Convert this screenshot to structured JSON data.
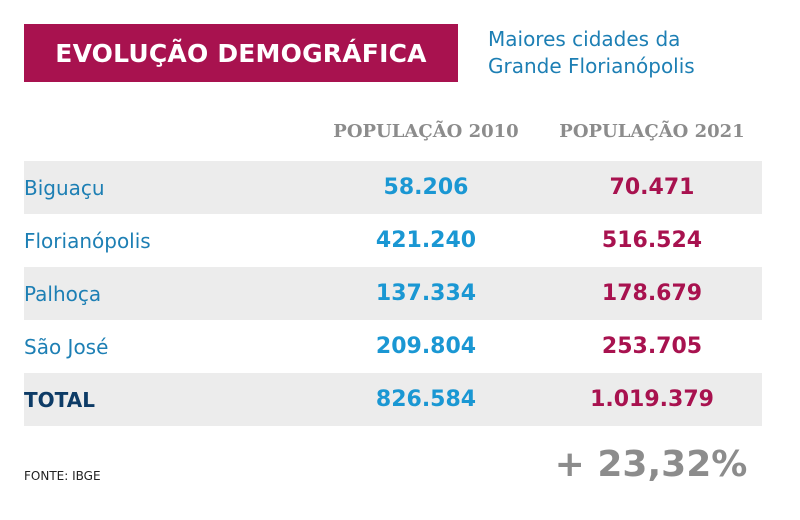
{
  "header": {
    "title": "EVOLUÇÃO DEMOGRÁFICA",
    "subtitle_line1": "Maiores cidades da",
    "subtitle_line2": "Grande Florianópolis"
  },
  "colors": {
    "title_background": "#a8124f",
    "value_2010": "#1a97d3",
    "value_2021": "#a8124f",
    "city_label": "#1d7fb4",
    "total_label": "#0d3b66",
    "row_shading": "#ececec"
  },
  "chart_data": {
    "type": "table",
    "columns": [
      "POPULAÇÃO 2010",
      "POPULAÇÃO 2021"
    ],
    "rows": [
      {
        "city": "Biguaçu",
        "pop_2010": "58.206",
        "pop_2021": "70.471"
      },
      {
        "city": "Florianópolis",
        "pop_2010": "421.240",
        "pop_2021": "516.524"
      },
      {
        "city": "Palhoça",
        "pop_2010": "137.334",
        "pop_2021": "178.679"
      },
      {
        "city": "São José",
        "pop_2010": "209.804",
        "pop_2021": "253.705"
      },
      {
        "city": "TOTAL",
        "pop_2010": "826.584",
        "pop_2021": "1.019.379"
      }
    ],
    "growth": "+ 23,32%",
    "source": "FONTE: IBGE"
  }
}
